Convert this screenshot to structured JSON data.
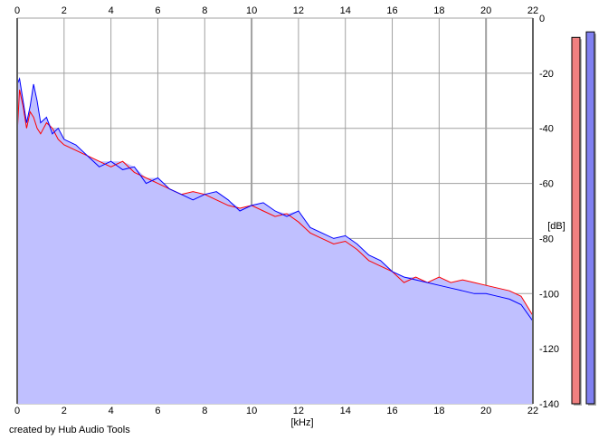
{
  "chart_data": {
    "type": "area",
    "title": "",
    "xlabel": "[kHz]",
    "ylabel": "[dB]",
    "x_range": [
      0,
      22
    ],
    "y_range": [
      -140,
      0
    ],
    "x_ticks": [
      0,
      2,
      4,
      6,
      8,
      10,
      12,
      14,
      16,
      18,
      20,
      22
    ],
    "y_ticks": [
      0,
      -20,
      -40,
      -60,
      -80,
      -100,
      -120,
      -140
    ],
    "x_tick_labels": [
      "0",
      "2",
      "4",
      "6",
      "8",
      "10",
      "12",
      "14",
      "16",
      "18",
      "20",
      "22"
    ],
    "y_tick_labels": [
      "0",
      "-20",
      "-40",
      "-60",
      "-80",
      "-100",
      "-120",
      "-140"
    ],
    "grid": true,
    "grid_color": "#a0a0a0",
    "fill_color": "#c0c0ff",
    "series": [
      {
        "color": "#ff0000",
        "x": [
          0,
          0.1,
          0.25,
          0.4,
          0.55,
          0.7,
          0.85,
          1.0,
          1.25,
          1.5,
          1.75,
          2.0,
          2.5,
          3.0,
          3.5,
          4.0,
          4.5,
          5.0,
          5.5,
          6.0,
          6.5,
          7.0,
          7.5,
          8.0,
          8.5,
          9.0,
          9.5,
          10.0,
          10.5,
          11.0,
          11.5,
          12.0,
          12.5,
          13.0,
          13.5,
          14.0,
          14.5,
          15.0,
          15.5,
          16.0,
          16.5,
          17.0,
          17.5,
          18.0,
          18.5,
          19.0,
          19.5,
          20.0,
          20.5,
          21.0,
          21.5,
          22.0
        ],
        "y": [
          -42,
          -26,
          -32,
          -40,
          -34,
          -36,
          -40,
          -42,
          -38,
          -40,
          -44,
          -46,
          -48,
          -50,
          -52,
          -54,
          -52,
          -56,
          -58,
          -60,
          -62,
          -64,
          -63,
          -64,
          -66,
          -68,
          -69,
          -68,
          -70,
          -72,
          -71,
          -74,
          -78,
          -80,
          -82,
          -81,
          -84,
          -88,
          -90,
          -92,
          -96,
          -94,
          -96,
          -94,
          -96,
          -95,
          -96,
          -97,
          -98,
          -99,
          -101,
          -108
        ]
      },
      {
        "color": "#0000ff",
        "x": [
          0,
          0.1,
          0.25,
          0.4,
          0.55,
          0.7,
          0.85,
          1.0,
          1.25,
          1.5,
          1.75,
          2.0,
          2.5,
          3.0,
          3.5,
          4.0,
          4.5,
          5.0,
          5.5,
          6.0,
          6.5,
          7.0,
          7.5,
          8.0,
          8.5,
          9.0,
          9.5,
          10.0,
          10.5,
          11.0,
          11.5,
          12.0,
          12.5,
          13.0,
          13.5,
          14.0,
          14.5,
          15.0,
          15.5,
          16.0,
          16.5,
          17.0,
          17.5,
          18.0,
          18.5,
          19.0,
          19.5,
          20.0,
          20.5,
          21.0,
          21.5,
          22.0
        ],
        "y": [
          -24,
          -22,
          -30,
          -38,
          -32,
          -24,
          -30,
          -38,
          -36,
          -42,
          -40,
          -44,
          -46,
          -50,
          -54,
          -52,
          -55,
          -54,
          -60,
          -58,
          -62,
          -64,
          -66,
          -64,
          -63,
          -66,
          -70,
          -68,
          -67,
          -70,
          -72,
          -70,
          -76,
          -78,
          -80,
          -79,
          -82,
          -86,
          -88,
          -92,
          -94,
          -95,
          -96,
          -97,
          -98,
          -99,
          -100,
          -100,
          -101,
          -102,
          -104,
          -110
        ]
      }
    ]
  },
  "level_meters": [
    {
      "color": "#f08080",
      "level_db": -7
    },
    {
      "color": "#8080f0",
      "level_db": -5
    }
  ],
  "credit": "created by Hub Audio Tools"
}
